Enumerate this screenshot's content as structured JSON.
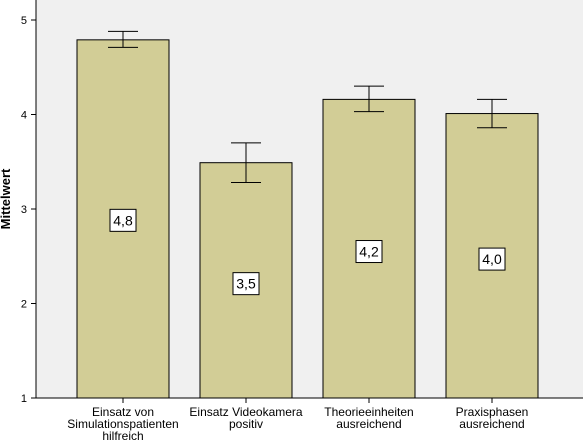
{
  "chart_data": {
    "type": "bar",
    "ylabel": "Mittelwert",
    "xlabel": "",
    "ylim": [
      1,
      5
    ],
    "yticks": [
      "1",
      "2",
      "3",
      "4",
      "5"
    ],
    "grid": false,
    "categories": [
      [
        "Einsatz von",
        "Simulationspatienten",
        "hilfreich"
      ],
      [
        "Einsatz Videokamera",
        "positiv"
      ],
      [
        "Theorieeinheiten",
        "ausreichend"
      ],
      [
        "Praxisphasen",
        "ausreichend"
      ]
    ],
    "values": [
      4.79,
      3.49,
      4.16,
      4.01
    ],
    "error_low": [
      4.71,
      3.28,
      4.03,
      3.86
    ],
    "error_high": [
      4.88,
      3.7,
      4.3,
      4.16
    ],
    "data_labels": [
      "4,8",
      "3,5",
      "4,2",
      "4,0"
    ],
    "data_label_values": [
      2.88,
      2.21,
      2.55,
      2.47
    ],
    "bar_color": "#d2cd96",
    "plot_background": "#f0f0f0"
  }
}
